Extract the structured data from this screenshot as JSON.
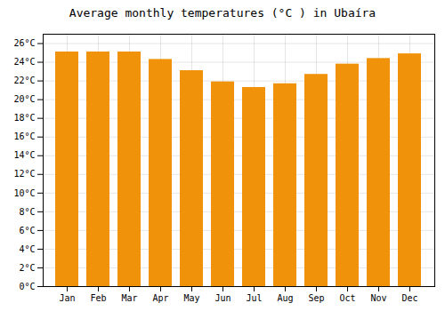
{
  "chart_data": {
    "type": "bar",
    "title": "Average monthly temperatures (°C ) in Ubaíra",
    "categories": [
      "Jan",
      "Feb",
      "Mar",
      "Apr",
      "May",
      "Jun",
      "Jul",
      "Aug",
      "Sep",
      "Oct",
      "Nov",
      "Dec"
    ],
    "values": [
      25.1,
      25.1,
      25.1,
      24.3,
      23.1,
      21.9,
      21.3,
      21.7,
      22.7,
      23.8,
      24.4,
      24.9
    ],
    "color": "#F0920A",
    "ylim": [
      0,
      27
    ],
    "yticks": [
      {
        "value": 0,
        "label": "0°C"
      },
      {
        "value": 2,
        "label": "2°C"
      },
      {
        "value": 4,
        "label": "4°C"
      },
      {
        "value": 6,
        "label": "6°C"
      },
      {
        "value": 8,
        "label": "8°C"
      },
      {
        "value": 10,
        "label": "10°C"
      },
      {
        "value": 12,
        "label": "12°C"
      },
      {
        "value": 14,
        "label": "14°C"
      },
      {
        "value": 16,
        "label": "16°C"
      },
      {
        "value": 18,
        "label": "18°C"
      },
      {
        "value": 20,
        "label": "20°C"
      },
      {
        "value": 22,
        "label": "22°C"
      },
      {
        "value": 24,
        "label": "24°C"
      },
      {
        "value": 26,
        "label": "26°C"
      }
    ],
    "grid": true
  }
}
